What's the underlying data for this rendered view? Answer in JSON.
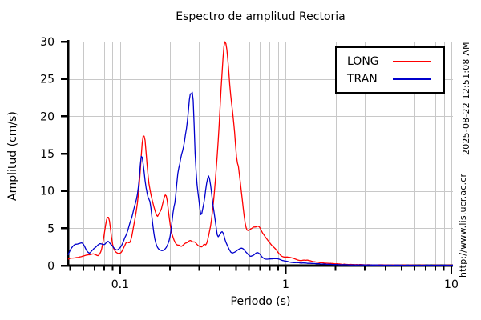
{
  "side_text": {
    "timestamp": "2025-08-22 12:51:08 AM",
    "url": "http://www.lis.ucr.ac.cr"
  },
  "colors": {
    "background": "#ffffff",
    "grid": "#c8c8c8",
    "axis": "#000000",
    "long_series": "#ff0000",
    "tran_series": "#0000cc"
  },
  "chart_data": {
    "type": "line",
    "title": "Espectro de amplitud Rectoria",
    "xlabel": "Periodo (s)",
    "ylabel": "Amplitud (cm/s)",
    "x_scale": "log",
    "xlim": [
      0.0485,
      10.23
    ],
    "ylim": [
      0,
      30
    ],
    "grid": true,
    "legend_position": "top-right",
    "x_major_ticks": [
      {
        "value": 0.1,
        "label": "0.1"
      },
      {
        "value": 1,
        "label": "1"
      },
      {
        "value": 10,
        "label": "10"
      }
    ],
    "x_minor_ticks": [
      0.05,
      0.06,
      0.07,
      0.08,
      0.09,
      0.2,
      0.3,
      0.4,
      0.5,
      0.6,
      0.7,
      0.8,
      0.9,
      2,
      3,
      4,
      5,
      6,
      7,
      8,
      9
    ],
    "x_grid": [
      0.06,
      0.07,
      0.08,
      0.09,
      0.1,
      0.2,
      0.3,
      0.4,
      0.5,
      0.6,
      0.7,
      0.8,
      0.9,
      1,
      2,
      3,
      4,
      5,
      6,
      7,
      8,
      9,
      10
    ],
    "y_ticks": [
      {
        "value": 0,
        "label": "0"
      },
      {
        "value": 5,
        "label": "5"
      },
      {
        "value": 10,
        "label": "10"
      },
      {
        "value": 15,
        "label": "15"
      },
      {
        "value": 20,
        "label": "20"
      },
      {
        "value": 25,
        "label": "25"
      },
      {
        "value": 30,
        "label": "30"
      }
    ],
    "y_grid": [
      5,
      10,
      15,
      20,
      25,
      30
    ],
    "series": [
      {
        "name": "LONG",
        "color": "#ff0000",
        "points": [
          [
            0.0485,
            0.9
          ],
          [
            0.051,
            1.0
          ],
          [
            0.054,
            1.05
          ],
          [
            0.057,
            1.15
          ],
          [
            0.06,
            1.3
          ],
          [
            0.063,
            1.4
          ],
          [
            0.066,
            1.5
          ],
          [
            0.069,
            1.6
          ],
          [
            0.071,
            1.45
          ],
          [
            0.074,
            1.25
          ],
          [
            0.077,
            1.9
          ],
          [
            0.079,
            3.2
          ],
          [
            0.081,
            5.0
          ],
          [
            0.083,
            6.4
          ],
          [
            0.0845,
            6.9
          ],
          [
            0.086,
            6.3
          ],
          [
            0.0875,
            5.0
          ],
          [
            0.089,
            3.4
          ],
          [
            0.091,
            2.2
          ],
          [
            0.094,
            1.8
          ],
          [
            0.097,
            1.65
          ],
          [
            0.1,
            1.6
          ],
          [
            0.1025,
            1.9
          ],
          [
            0.105,
            2.4
          ],
          [
            0.108,
            3.0
          ],
          [
            0.111,
            3.2
          ],
          [
            0.114,
            2.9
          ],
          [
            0.117,
            3.6
          ],
          [
            0.12,
            5.0
          ],
          [
            0.124,
            6.6
          ],
          [
            0.128,
            8.7
          ],
          [
            0.131,
            11.0
          ],
          [
            0.134,
            14.5
          ],
          [
            0.136,
            17.0
          ],
          [
            0.1375,
            17.9
          ],
          [
            0.139,
            17.4
          ],
          [
            0.141,
            17.6
          ],
          [
            0.143,
            15.5
          ],
          [
            0.146,
            12.8
          ],
          [
            0.149,
            10.8
          ],
          [
            0.153,
            9.6
          ],
          [
            0.158,
            8.2
          ],
          [
            0.163,
            7.3
          ],
          [
            0.168,
            6.5
          ],
          [
            0.173,
            7.0
          ],
          [
            0.178,
            7.7
          ],
          [
            0.184,
            9.0
          ],
          [
            0.189,
            9.7
          ],
          [
            0.192,
            9.0
          ],
          [
            0.197,
            6.6
          ],
          [
            0.203,
            4.6
          ],
          [
            0.211,
            3.4
          ],
          [
            0.219,
            2.8
          ],
          [
            0.227,
            2.7
          ],
          [
            0.235,
            2.5
          ],
          [
            0.245,
            2.9
          ],
          [
            0.254,
            3.1
          ],
          [
            0.262,
            3.3
          ],
          [
            0.268,
            3.4
          ],
          [
            0.275,
            3.1
          ],
          [
            0.283,
            3.25
          ],
          [
            0.294,
            2.7
          ],
          [
            0.305,
            2.6
          ],
          [
            0.312,
            2.5
          ],
          [
            0.322,
            2.9
          ],
          [
            0.331,
            2.7
          ],
          [
            0.341,
            3.8
          ],
          [
            0.354,
            5.6
          ],
          [
            0.368,
            8.8
          ],
          [
            0.38,
            12.7
          ],
          [
            0.392,
            17.0
          ],
          [
            0.401,
            21.0
          ],
          [
            0.411,
            25.5
          ],
          [
            0.42,
            28.8
          ],
          [
            0.428,
            30.2
          ],
          [
            0.4335,
            29.4
          ],
          [
            0.438,
            30.0
          ],
          [
            0.445,
            28.3
          ],
          [
            0.455,
            25.2
          ],
          [
            0.468,
            22.2
          ],
          [
            0.486,
            19.0
          ],
          [
            0.499,
            15.8
          ],
          [
            0.506,
            14.0
          ],
          [
            0.511,
            13.4
          ],
          [
            0.516,
            14.0
          ],
          [
            0.526,
            12.0
          ],
          [
            0.543,
            9.3
          ],
          [
            0.554,
            7.5
          ],
          [
            0.566,
            5.9
          ],
          [
            0.578,
            4.8
          ],
          [
            0.586,
            4.5
          ],
          [
            0.603,
            4.8
          ],
          [
            0.625,
            5.0
          ],
          [
            0.652,
            5.2
          ],
          [
            0.678,
            5.3
          ],
          [
            0.703,
            5.0
          ],
          [
            0.732,
            4.2
          ],
          [
            0.762,
            3.6
          ],
          [
            0.792,
            3.2
          ],
          [
            0.83,
            2.6
          ],
          [
            0.87,
            2.2
          ],
          [
            0.91,
            1.6
          ],
          [
            0.95,
            1.2
          ],
          [
            1.0,
            1.1
          ],
          [
            1.05,
            1.15
          ],
          [
            1.1,
            1.0
          ],
          [
            1.16,
            0.8
          ],
          [
            1.22,
            0.65
          ],
          [
            1.28,
            0.7
          ],
          [
            1.36,
            0.75
          ],
          [
            1.45,
            0.55
          ],
          [
            1.56,
            0.45
          ],
          [
            1.7,
            0.35
          ],
          [
            1.85,
            0.3
          ],
          [
            2.0,
            0.25
          ],
          [
            2.2,
            0.18
          ],
          [
            2.5,
            0.15
          ],
          [
            2.9,
            0.12
          ],
          [
            3.4,
            0.1
          ],
          [
            4.2,
            0.08
          ],
          [
            5.2,
            0.07
          ],
          [
            6.5,
            0.06
          ],
          [
            8.0,
            0.06
          ],
          [
            10.23,
            0.05
          ]
        ]
      },
      {
        "name": "TRAN",
        "color": "#0000cc",
        "points": [
          [
            0.0485,
            1.4
          ],
          [
            0.05,
            2.2
          ],
          [
            0.052,
            2.7
          ],
          [
            0.0535,
            2.9
          ],
          [
            0.055,
            2.8
          ],
          [
            0.057,
            3.0
          ],
          [
            0.059,
            3.1
          ],
          [
            0.061,
            2.6
          ],
          [
            0.063,
            1.9
          ],
          [
            0.0655,
            1.6
          ],
          [
            0.068,
            2.1
          ],
          [
            0.07,
            2.4
          ],
          [
            0.072,
            2.6
          ],
          [
            0.074,
            2.8
          ],
          [
            0.076,
            3.0
          ],
          [
            0.078,
            2.9
          ],
          [
            0.08,
            2.75
          ],
          [
            0.0825,
            3.1
          ],
          [
            0.0845,
            3.4
          ],
          [
            0.087,
            3.0
          ],
          [
            0.09,
            2.6
          ],
          [
            0.093,
            2.2
          ],
          [
            0.096,
            2.1
          ],
          [
            0.1,
            2.3
          ],
          [
            0.103,
            2.9
          ],
          [
            0.106,
            3.6
          ],
          [
            0.11,
            4.4
          ],
          [
            0.113,
            5.2
          ],
          [
            0.117,
            6.3
          ],
          [
            0.12,
            7.2
          ],
          [
            0.124,
            8.4
          ],
          [
            0.127,
            9.3
          ],
          [
            0.13,
            11.0
          ],
          [
            0.1325,
            13.5
          ],
          [
            0.134,
            15.1
          ],
          [
            0.136,
            14.7
          ],
          [
            0.139,
            13.0
          ],
          [
            0.142,
            11.0
          ],
          [
            0.145,
            9.8
          ],
          [
            0.148,
            8.9
          ],
          [
            0.151,
            9.0
          ],
          [
            0.154,
            7.5
          ],
          [
            0.158,
            5.0
          ],
          [
            0.162,
            3.4
          ],
          [
            0.166,
            2.6
          ],
          [
            0.171,
            2.2
          ],
          [
            0.178,
            2.0
          ],
          [
            0.185,
            2.1
          ],
          [
            0.19,
            2.4
          ],
          [
            0.196,
            3.0
          ],
          [
            0.2,
            3.8
          ],
          [
            0.205,
            5.5
          ],
          [
            0.21,
            7.9
          ],
          [
            0.214,
            8.1
          ],
          [
            0.218,
            9.9
          ],
          [
            0.223,
            12.4
          ],
          [
            0.228,
            13.5
          ],
          [
            0.232,
            14.2
          ],
          [
            0.238,
            15.5
          ],
          [
            0.244,
            16.6
          ],
          [
            0.25,
            18.0
          ],
          [
            0.256,
            19.8
          ],
          [
            0.261,
            22.0
          ],
          [
            0.2655,
            24.0
          ],
          [
            0.269,
            22.6
          ],
          [
            0.2715,
            23.0
          ],
          [
            0.2745,
            23.5
          ],
          [
            0.278,
            21.5
          ],
          [
            0.281,
            17.5
          ],
          [
            0.284,
            13.8
          ],
          [
            0.292,
            10.5
          ],
          [
            0.299,
            8.8
          ],
          [
            0.305,
            6.9
          ],
          [
            0.309,
            6.3
          ],
          [
            0.315,
            7.5
          ],
          [
            0.323,
            8.8
          ],
          [
            0.334,
            11.3
          ],
          [
            0.343,
            12.2
          ],
          [
            0.35,
            11.4
          ],
          [
            0.36,
            8.8
          ],
          [
            0.37,
            6.9
          ],
          [
            0.378,
            5.6
          ],
          [
            0.386,
            3.9
          ],
          [
            0.391,
            3.6
          ],
          [
            0.4,
            4.2
          ],
          [
            0.413,
            4.6
          ],
          [
            0.421,
            4.3
          ],
          [
            0.431,
            3.4
          ],
          [
            0.441,
            2.8
          ],
          [
            0.455,
            2.2
          ],
          [
            0.465,
            1.8
          ],
          [
            0.476,
            1.6
          ],
          [
            0.49,
            1.8
          ],
          [
            0.51,
            2.0
          ],
          [
            0.53,
            2.3
          ],
          [
            0.545,
            2.4
          ],
          [
            0.568,
            2.0
          ],
          [
            0.59,
            1.5
          ],
          [
            0.615,
            1.2
          ],
          [
            0.64,
            1.4
          ],
          [
            0.662,
            1.7
          ],
          [
            0.676,
            1.8
          ],
          [
            0.7,
            1.5
          ],
          [
            0.72,
            1.1
          ],
          [
            0.742,
            0.9
          ],
          [
            0.77,
            0.85
          ],
          [
            0.8,
            0.9
          ],
          [
            0.85,
            0.95
          ],
          [
            0.89,
            0.95
          ],
          [
            0.93,
            0.8
          ],
          [
            0.98,
            0.6
          ],
          [
            1.05,
            0.5
          ],
          [
            1.12,
            0.4
          ],
          [
            1.25,
            0.35
          ],
          [
            1.4,
            0.3
          ],
          [
            1.55,
            0.25
          ],
          [
            1.75,
            0.2
          ],
          [
            1.95,
            0.15
          ],
          [
            2.2,
            0.12
          ],
          [
            2.6,
            0.1
          ],
          [
            3.0,
            0.08
          ],
          [
            4.0,
            0.07
          ],
          [
            5.0,
            0.06
          ],
          [
            7.0,
            0.05
          ],
          [
            10.23,
            0.05
          ]
        ]
      }
    ]
  }
}
